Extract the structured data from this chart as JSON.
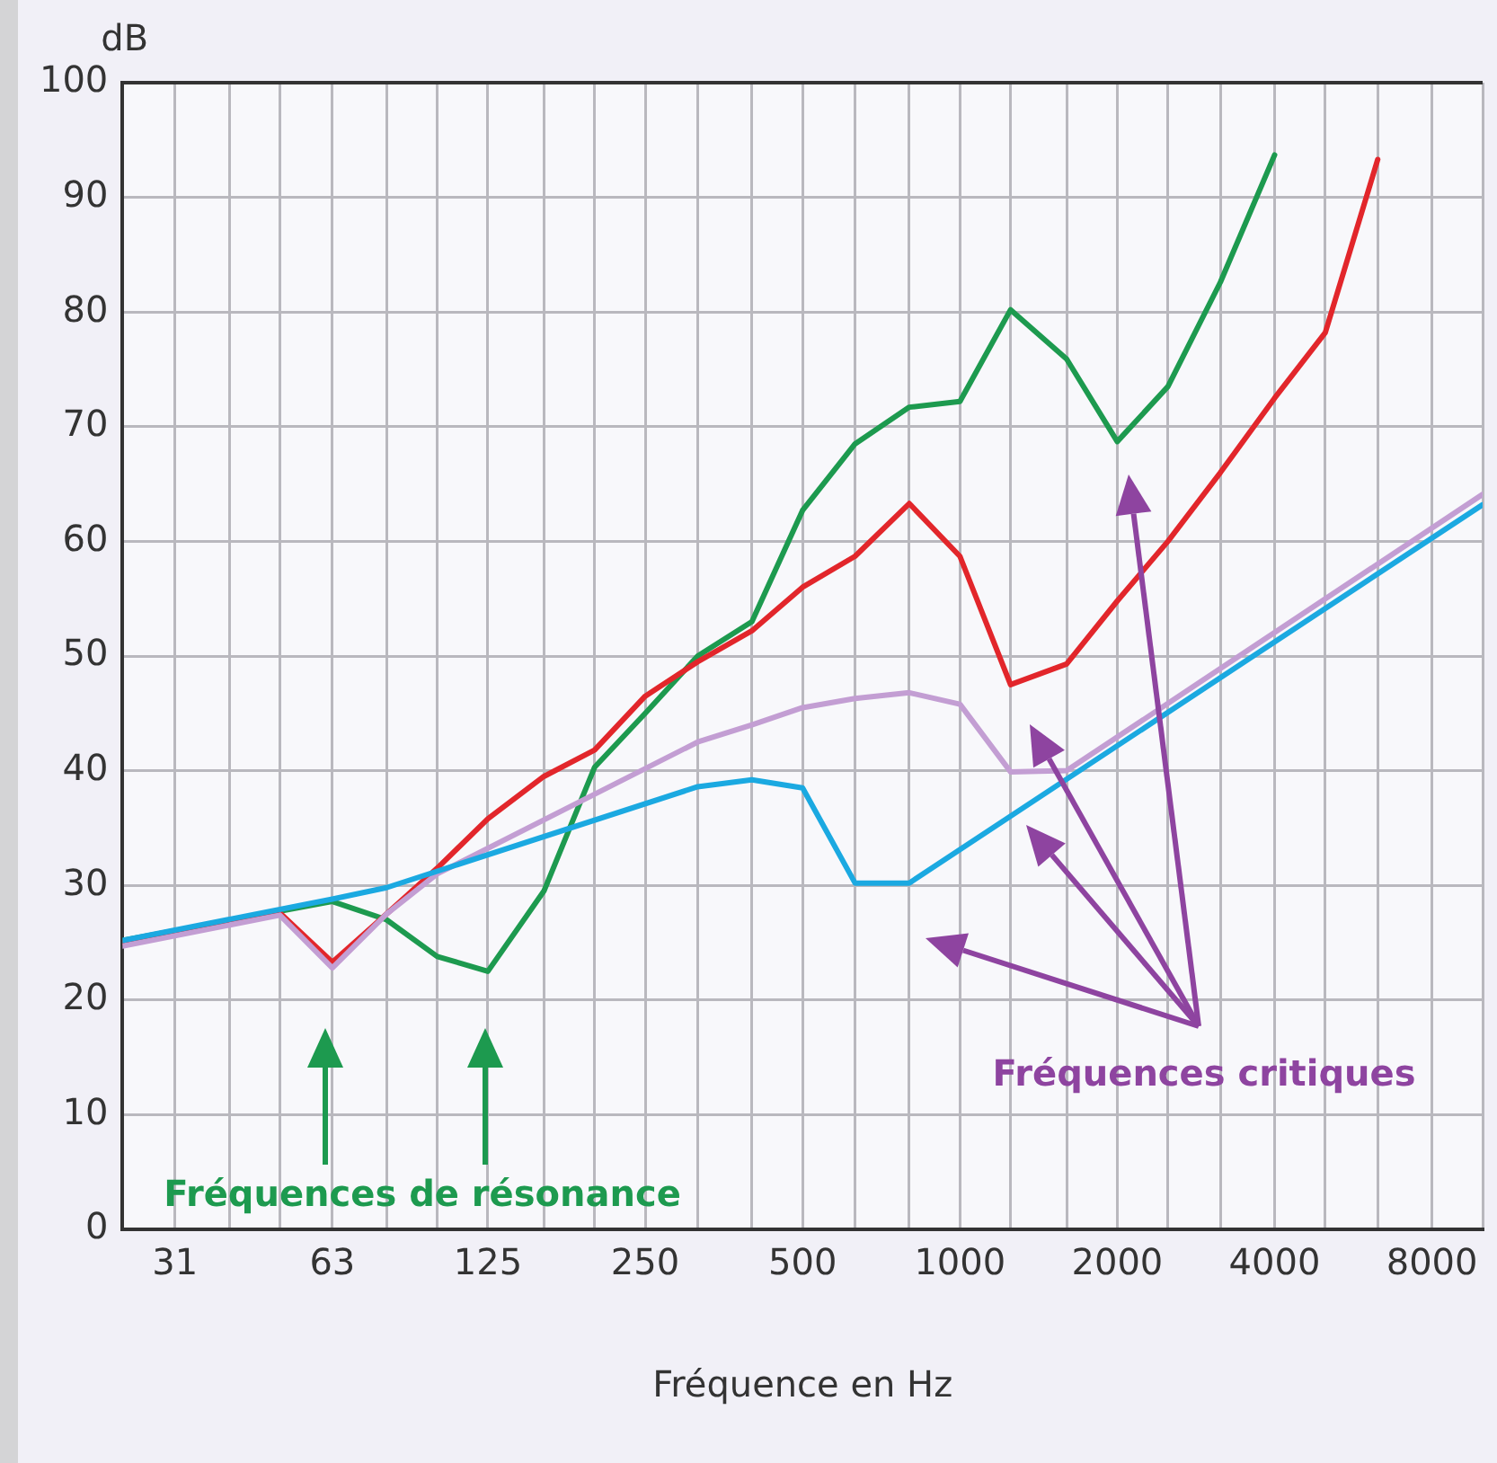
{
  "chart_data": {
    "type": "line",
    "xlabel": "Fréquence en Hz",
    "ylabel": "dB",
    "log": "x",
    "xlim": [
      25,
      10000
    ],
    "xticks": [
      {
        "value": 25,
        "label": null
      },
      {
        "value": 31.5,
        "label": "31"
      },
      {
        "value": 40,
        "label": null
      },
      {
        "value": 50,
        "label": null
      },
      63,
      {
        "value": 80,
        "label": null
      },
      {
        "value": 100,
        "label": null
      },
      125,
      {
        "value": 160,
        "label": null
      },
      {
        "value": 200,
        "label": null
      },
      250,
      {
        "value": 315,
        "label": null
      },
      {
        "value": 400,
        "label": null
      },
      500,
      {
        "value": 630,
        "label": null
      },
      {
        "value": 800,
        "label": null
      },
      1000,
      {
        "value": 1250,
        "label": null
      },
      {
        "value": 1600,
        "label": null
      },
      2000,
      {
        "value": 2500,
        "label": null
      },
      {
        "value": 3150,
        "label": null
      },
      4000,
      {
        "value": 5000,
        "label": null
      },
      {
        "value": 6300,
        "label": null
      },
      8000,
      {
        "value": 10000,
        "label": null
      }
    ],
    "ylim": [
      0,
      100
    ],
    "yticks": [
      0,
      10,
      20,
      30,
      40,
      50,
      60,
      70,
      80,
      90,
      100
    ],
    "grid": true,
    "legend": false,
    "marker": "none",
    "line_style": "solid",
    "series": [
      {
        "color": "#1ba9e1",
        "x": [
          25,
          63,
          80,
          315,
          400,
          500,
          630,
          800,
          10000
        ],
        "values": [
          25.2,
          28.8,
          29.8,
          38.6,
          39.2,
          38.5,
          30.2,
          30.2,
          63.2
        ]
      },
      {
        "color": "#c39ed3",
        "x": [
          25,
          50,
          63,
          80,
          100,
          315,
          400,
          500,
          630,
          800,
          1000,
          1250,
          1600,
          10000
        ],
        "values": [
          24.7,
          27.4,
          22.8,
          27.5,
          31,
          42.5,
          44,
          45.5,
          46.3,
          46.8,
          45.8,
          39.9,
          40,
          64.1
        ]
      },
      {
        "color": "#e2262b",
        "x": [
          25,
          50,
          63,
          80,
          100,
          125,
          160,
          200,
          250,
          315,
          400,
          500,
          630,
          800,
          1000,
          1250,
          1600,
          2000,
          2500,
          3150,
          4000,
          5000,
          6300
        ],
        "values": [
          25,
          27.6,
          23.3,
          27.5,
          31.5,
          35.8,
          39.5,
          41.8,
          46.5,
          49.5,
          52.2,
          56,
          58.7,
          63.3,
          58.7,
          47.5,
          49.3,
          54.8,
          60,
          66,
          72.5,
          78.2,
          93.3
        ]
      },
      {
        "color": "#1d9a4f",
        "x": [
          25,
          63,
          80,
          100,
          125,
          160,
          200,
          250,
          315,
          400,
          500,
          630,
          800,
          1000,
          1250,
          1600,
          2000,
          2500,
          3150,
          4000
        ],
        "values": [
          25.2,
          28.6,
          27,
          23.8,
          22.5,
          29.5,
          40.3,
          45,
          50,
          53,
          62.7,
          68.5,
          71.7,
          72.2,
          80.2,
          75.9,
          68.7,
          73.5,
          82.6,
          93.7
        ]
      }
    ],
    "annotations": [
      "Fréquences de résonance",
      "Fréquences critiques"
    ]
  }
}
